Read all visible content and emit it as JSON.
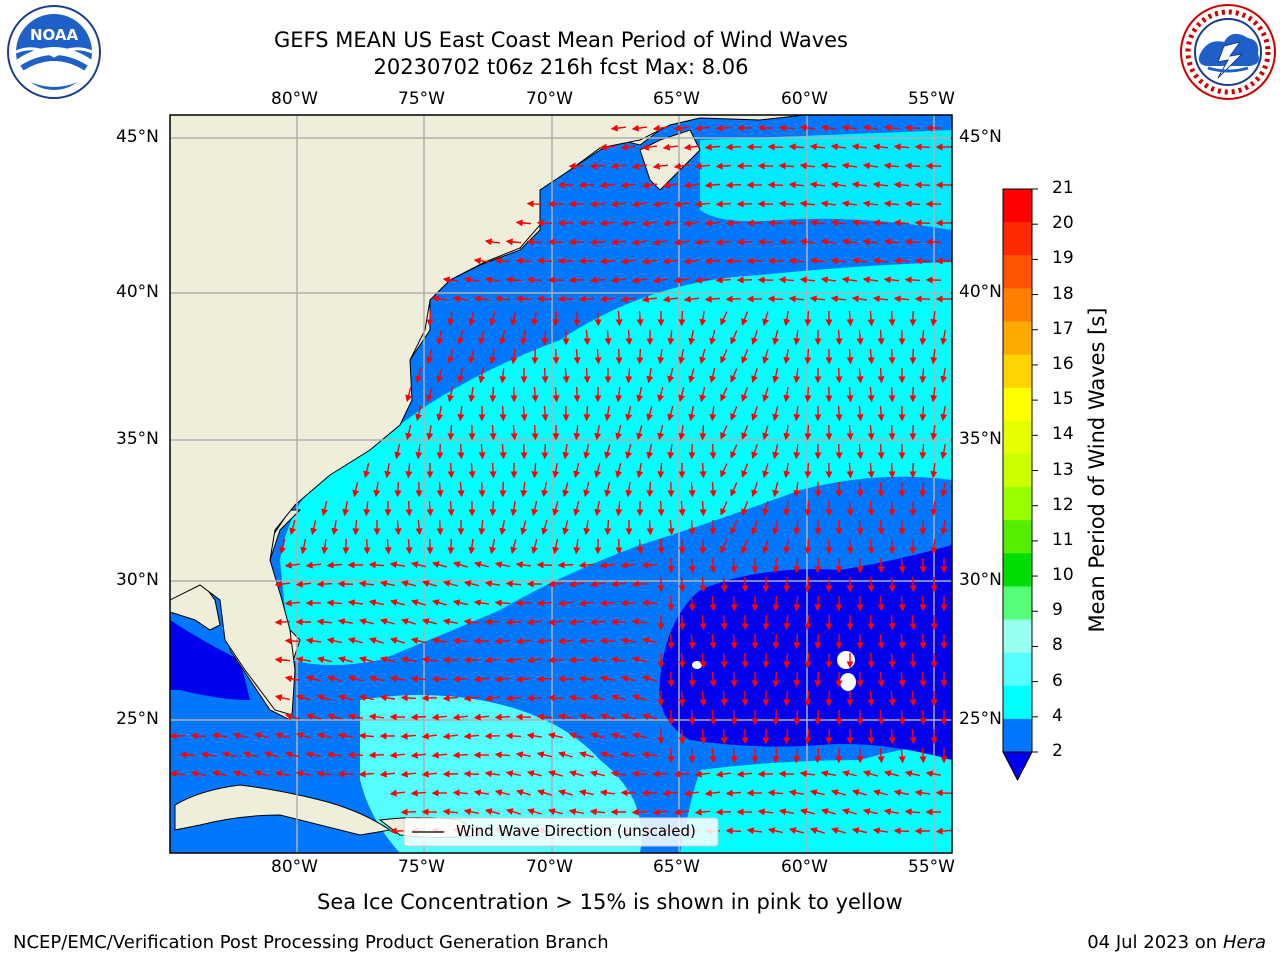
{
  "title_line1": "GEFS MEAN US East Coast Mean Period of Wind Waves",
  "title_line2": "20230702 t06z 216h fcst   Max: 8.06",
  "lon_labels": [
    "80°W",
    "75°W",
    "70°W",
    "65°W",
    "60°W",
    "55°W"
  ],
  "lat_labels": [
    "45°N",
    "40°N",
    "35°N",
    "30°N",
    "25°N"
  ],
  "legend_label": "Wind Wave Direction (unscaled)",
  "colorbar": {
    "label": "Mean Period of Wind Waves [s]",
    "ticks": [
      "21",
      "20",
      "19",
      "18",
      "17",
      "16",
      "15",
      "14",
      "13",
      "12",
      "11",
      "10",
      "9",
      "8",
      "6",
      "4",
      "2"
    ],
    "colors": [
      "#ff0000",
      "#ff2a00",
      "#ff5500",
      "#ff7f00",
      "#ffaa00",
      "#ffd400",
      "#ffff00",
      "#e5ff00",
      "#ccff00",
      "#99ff00",
      "#55ee00",
      "#00dd00",
      "#55ff77",
      "#99ffee",
      "#55ffff",
      "#00ffff",
      "#0077ff"
    ],
    "under_color": "#0000ee"
  },
  "sea_ice_note": "Sea Ice Concentration > 15% is shown in pink to yellow",
  "footer_left": "NCEP/EMC/Verification Post Processing Product Generation Branch",
  "footer_right_date": "04 Jul 2023 on ",
  "footer_right_host": "Hera",
  "logos": {
    "left": "noaa-logo",
    "right": "nws-logo",
    "nws_text": "NATIONAL WEATHER SERVICE",
    "noaa_text": "NOAA"
  },
  "colors": {
    "land": "#efeedb",
    "ocean_low": "#0077ff",
    "ocean_mid": "#00ffff",
    "ocean_hi": "#55ffff",
    "deep": "#0000ee",
    "arrow": "#ff0000",
    "grid": "#b0b0b0"
  }
}
